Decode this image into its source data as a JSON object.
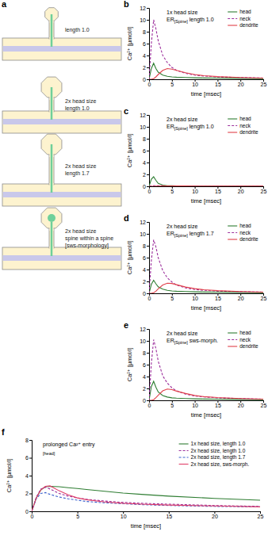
{
  "panel_labels": [
    "a",
    "b",
    "c",
    "d",
    "e",
    "f"
  ],
  "diagram": {
    "spines": [
      {
        "label": [
          "length 1.0"
        ]
      },
      {
        "label": [
          "2x head size",
          "length 1.0"
        ]
      },
      {
        "label": [
          "2x head size",
          "length 1.7"
        ]
      },
      {
        "label": [
          "2x head size",
          "spine within a spine",
          "[sws-morphology]"
        ]
      }
    ]
  },
  "chart_data": [
    {
      "type": "line",
      "title": "1x head size",
      "subtitle": "ER[Spine] length 1.0",
      "x_label": "time [msec]",
      "y_label": "Ca²⁺ [µmol/l]",
      "x": [
        0,
        0.5,
        1,
        1.5,
        2,
        3,
        4,
        5,
        6,
        8,
        10,
        12,
        15,
        20,
        25
      ],
      "xlim": [
        0,
        25
      ],
      "xticks": [
        0,
        5,
        10,
        15,
        20,
        25
      ],
      "ylim": [
        0,
        12
      ],
      "yticks": [
        0,
        2,
        4,
        6,
        8,
        10,
        12
      ],
      "legend": "upper right",
      "series": [
        {
          "name": "head",
          "color": "#2e7d32",
          "line_style": "solid",
          "values": [
            0,
            1.8,
            2.7,
            1.8,
            1.2,
            0.7,
            0.5,
            0.4,
            0.35,
            0.3,
            0.25,
            0.22,
            0.2,
            0.15,
            0.12
          ]
        },
        {
          "name": "neck",
          "color": "#9c2f9c",
          "line_style": "dashed",
          "values": [
            0,
            6,
            10,
            8.5,
            6.5,
            4,
            2.8,
            2,
            1.5,
            1,
            0.7,
            0.55,
            0.4,
            0.3,
            0.2
          ]
        },
        {
          "name": "dendrite",
          "color": "#e0404a",
          "line_style": "solid",
          "values": [
            0,
            0,
            0.1,
            0.4,
            0.8,
            1.5,
            1.8,
            1.7,
            1.5,
            1.1,
            0.8,
            0.6,
            0.45,
            0.3,
            0.2
          ]
        }
      ]
    },
    {
      "type": "line",
      "title": "2x head size",
      "subtitle": "ER[Spine] length 1.0",
      "x_label": "time [msec]",
      "y_label": "Ca²⁺ [µmol/l]",
      "x": [
        0,
        0.5,
        1,
        1.5,
        2,
        3,
        4,
        5,
        6,
        8,
        10,
        12,
        15,
        20,
        25
      ],
      "xlim": [
        0,
        25
      ],
      "xticks": [
        0,
        5,
        10,
        15,
        20,
        25
      ],
      "ylim": [
        0,
        12
      ],
      "yticks": [
        0,
        2,
        4,
        6,
        8,
        10,
        12
      ],
      "legend": "upper right",
      "series": [
        {
          "name": "head",
          "color": "#2e7d32",
          "line_style": "solid",
          "values": [
            0,
            1.2,
            1.6,
            1,
            0.5,
            0.2,
            0.1,
            0.08,
            0.06,
            0.05,
            0.04,
            0.04,
            0.03,
            0.03,
            0.02
          ]
        },
        {
          "name": "neck",
          "color": "#9c2f9c",
          "line_style": "dashed",
          "values": [
            0,
            0.05,
            0.1,
            0.1,
            0.1,
            0.08,
            0.07,
            0.06,
            0.05,
            0.05,
            0.04,
            0.04,
            0.03,
            0.03,
            0.02
          ]
        },
        {
          "name": "dendrite",
          "color": "#e0404a",
          "line_style": "solid",
          "values": [
            0,
            0,
            0,
            0.02,
            0.04,
            0.06,
            0.07,
            0.07,
            0.06,
            0.05,
            0.04,
            0.04,
            0.03,
            0.03,
            0.02
          ]
        }
      ]
    },
    {
      "type": "line",
      "title": "2x head size",
      "subtitle": "ER[Spine] length 1.7",
      "x_label": "time [msec]",
      "y_label": "Ca²⁺ [µmol/l]",
      "x": [
        0,
        0.5,
        1,
        1.5,
        2,
        3,
        4,
        5,
        6,
        8,
        10,
        12,
        15,
        20,
        25
      ],
      "xlim": [
        0,
        25
      ],
      "xticks": [
        0,
        5,
        10,
        15,
        20,
        25
      ],
      "ylim": [
        0,
        12
      ],
      "yticks": [
        0,
        2,
        4,
        6,
        8,
        10,
        12
      ],
      "legend": "upper right",
      "series": [
        {
          "name": "head",
          "color": "#2e7d32",
          "line_style": "solid",
          "values": [
            0,
            1.5,
            2.2,
            1.6,
            1.1,
            0.7,
            0.5,
            0.4,
            0.35,
            0.3,
            0.25,
            0.22,
            0.2,
            0.15,
            0.12
          ]
        },
        {
          "name": "neck",
          "color": "#9c2f9c",
          "line_style": "dashed",
          "values": [
            0,
            5.5,
            9,
            7.8,
            6,
            3.8,
            2.6,
            1.9,
            1.4,
            0.9,
            0.65,
            0.5,
            0.38,
            0.28,
            0.2
          ]
        },
        {
          "name": "dendrite",
          "color": "#e0404a",
          "line_style": "solid",
          "values": [
            0,
            0,
            0.1,
            0.35,
            0.75,
            1.4,
            1.7,
            1.65,
            1.45,
            1.05,
            0.78,
            0.6,
            0.45,
            0.3,
            0.2
          ]
        }
      ]
    },
    {
      "type": "line",
      "title": "2x head size",
      "subtitle": "ER[Spine] sws-morph.",
      "x_label": "time [msec]",
      "y_label": "Ca²⁺ [µmol/l]",
      "x": [
        0,
        0.5,
        1,
        1.5,
        2,
        3,
        4,
        5,
        6,
        8,
        10,
        12,
        15,
        20,
        25
      ],
      "xlim": [
        0,
        25
      ],
      "xticks": [
        0,
        5,
        10,
        15,
        20,
        25
      ],
      "ylim": [
        0,
        12
      ],
      "yticks": [
        0,
        2,
        4,
        6,
        8,
        10,
        12
      ],
      "legend": "upper right",
      "series": [
        {
          "name": "head",
          "color": "#2e7d32",
          "line_style": "solid",
          "values": [
            0,
            2.3,
            3.2,
            2.2,
            1.4,
            0.8,
            0.55,
            0.42,
            0.36,
            0.3,
            0.25,
            0.22,
            0.2,
            0.15,
            0.12
          ]
        },
        {
          "name": "neck",
          "color": "#9c2f9c",
          "line_style": "dashed",
          "values": [
            0,
            6.2,
            10.2,
            8.7,
            6.6,
            4.1,
            2.9,
            2.1,
            1.6,
            1.05,
            0.72,
            0.56,
            0.42,
            0.3,
            0.2
          ]
        },
        {
          "name": "dendrite",
          "color": "#e0404a",
          "line_style": "solid",
          "values": [
            0,
            0,
            0.1,
            0.45,
            0.85,
            1.6,
            1.9,
            1.8,
            1.55,
            1.15,
            0.82,
            0.62,
            0.46,
            0.3,
            0.2
          ]
        }
      ]
    },
    {
      "type": "line",
      "title": "prolonged Ca²⁺ entry",
      "subtitle": "[head]",
      "x_label": "time [msec]",
      "y_label": "Ca²⁺ [µmol/l]",
      "x": [
        0,
        0.5,
        1,
        1.5,
        2,
        3,
        4,
        5,
        6,
        8,
        10,
        12,
        15,
        20,
        25
      ],
      "xlim": [
        0,
        25
      ],
      "xticks": [
        0,
        5,
        10,
        15,
        20,
        25
      ],
      "ylim": [
        0,
        8
      ],
      "yticks": [
        0,
        2,
        4,
        6,
        8
      ],
      "legend": "upper right",
      "series": [
        {
          "name": "1x head size, length 1.0",
          "color": "#2e7d32",
          "line_style": "solid",
          "values": [
            0,
            1.5,
            2.4,
            2.75,
            2.8,
            2.75,
            2.65,
            2.55,
            2.45,
            2.25,
            2.05,
            1.9,
            1.7,
            1.45,
            1.25
          ]
        },
        {
          "name": "2x head size, length 1.0",
          "color": "#9c2f9c",
          "line_style": "dashed",
          "values": [
            0,
            1.6,
            2.5,
            2.7,
            2.5,
            2.0,
            1.7,
            1.5,
            1.35,
            1.15,
            1.0,
            0.9,
            0.8,
            0.65,
            0.55
          ]
        },
        {
          "name": "2x head size, length 1.7",
          "color": "#3a5fcd",
          "line_style": "dashed",
          "values": [
            0,
            1.4,
            2.0,
            2.1,
            1.9,
            1.6,
            1.4,
            1.25,
            1.1,
            0.95,
            0.85,
            0.75,
            0.65,
            0.55,
            0.5
          ]
        },
        {
          "name": "2x head size, sws-morph.",
          "color": "#e0406a",
          "line_style": "solid",
          "values": [
            0,
            1.5,
            2.4,
            2.8,
            2.85,
            2.3,
            1.85,
            1.5,
            1.3,
            1.05,
            0.9,
            0.8,
            0.7,
            0.6,
            0.5
          ]
        }
      ]
    }
  ]
}
